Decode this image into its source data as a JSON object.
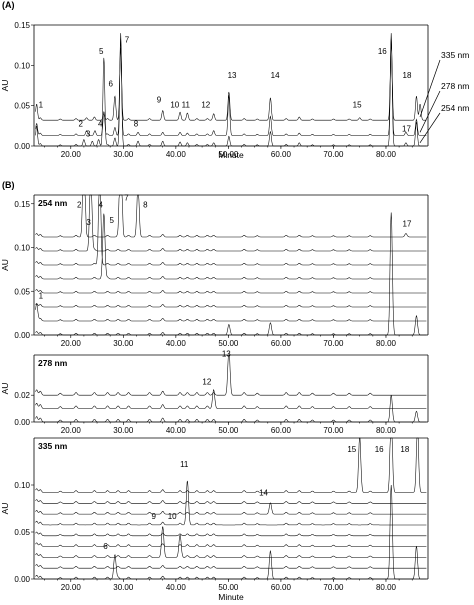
{
  "panel_a_label": "(A)",
  "panel_b_label": "(B)",
  "chart_data": [
    {
      "type": "line",
      "id": "A",
      "xlabel": "Minute",
      "ylabel": "AU",
      "xlim": [
        13,
        88
      ],
      "ylim": [
        0,
        0.15
      ],
      "xticks": [
        "20.00",
        "30.00",
        "40.00",
        "50.00",
        "60.00",
        "70.00",
        "80.00"
      ],
      "yticks": [
        "0.00",
        "0.05",
        "0.10",
        "0.15"
      ],
      "series": [
        {
          "name": "335 nm",
          "offset": 0.032,
          "peaks": [
            [
              13.5,
              0.02
            ],
            [
              23,
              0.003
            ],
            [
              24.5,
              0.004
            ],
            [
              26.3,
              0.008
            ],
            [
              28.4,
              0.03
            ],
            [
              29.5,
              0.09
            ],
            [
              37.5,
              0.012
            ],
            [
              40.8,
              0.01
            ],
            [
              42.2,
              0.009
            ],
            [
              47.2,
              0.008
            ],
            [
              50.1,
              0.035
            ],
            [
              58,
              0.028
            ],
            [
              63.5,
              0.004
            ],
            [
              75,
              0.003
            ],
            [
              81,
              0.095
            ],
            [
              85.8,
              0.03
            ],
            [
              86.5,
              0.02
            ]
          ]
        },
        {
          "name": "278 nm",
          "offset": 0.013,
          "peaks": [
            [
              13.5,
              0.015
            ],
            [
              23,
              0.006
            ],
            [
              24.6,
              0.006
            ],
            [
              26.3,
              0.03
            ],
            [
              28.4,
              0.01
            ],
            [
              29.5,
              0.12
            ],
            [
              32.8,
              0.004
            ],
            [
              37.5,
              0.004
            ],
            [
              40.8,
              0.004
            ],
            [
              42.2,
              0.003
            ],
            [
              47.2,
              0.006
            ],
            [
              50.1,
              0.05
            ],
            [
              58,
              0.024
            ],
            [
              63.5,
              0.003
            ],
            [
              81,
              0.12
            ],
            [
              83.8,
              0.004
            ],
            [
              85.8,
              0.02
            ]
          ]
        },
        {
          "name": "254 nm",
          "offset": 0.0,
          "peaks": [
            [
              13.5,
              0.025
            ],
            [
              22.5,
              0.008
            ],
            [
              24.1,
              0.006
            ],
            [
              25.3,
              0.008
            ],
            [
              26.3,
              0.11
            ],
            [
              28.4,
              0.01
            ],
            [
              29.5,
              0.14
            ],
            [
              32.8,
              0.006
            ],
            [
              37.5,
              0.006
            ],
            [
              40.8,
              0.005
            ],
            [
              42.2,
              0.004
            ],
            [
              47.2,
              0.004
            ],
            [
              50.1,
              0.012
            ],
            [
              58,
              0.018
            ],
            [
              63.5,
              0.004
            ],
            [
              81,
              0.14
            ],
            [
              83.8,
              0.004
            ],
            [
              85.8,
              0.03
            ]
          ]
        }
      ],
      "peak_labels": [
        {
          "text": "1",
          "x": 14.3,
          "y": 0.048
        },
        {
          "text": "2",
          "x": 21.9,
          "y": 0.024
        },
        {
          "text": "3",
          "x": 23.3,
          "y": 0.012
        },
        {
          "text": "4",
          "x": 25.6,
          "y": 0.024
        },
        {
          "text": "5",
          "x": 25.8,
          "y": 0.114
        },
        {
          "text": "6",
          "x": 27.6,
          "y": 0.074
        },
        {
          "text": "7",
          "x": 30.7,
          "y": 0.128
        },
        {
          "text": "8",
          "x": 32.4,
          "y": 0.024
        },
        {
          "text": "9",
          "x": 36.8,
          "y": 0.054
        },
        {
          "text": "10",
          "x": 39.8,
          "y": 0.048
        },
        {
          "text": "11",
          "x": 41.9,
          "y": 0.048
        },
        {
          "text": "12",
          "x": 45.7,
          "y": 0.048
        },
        {
          "text": "13",
          "x": 50.7,
          "y": 0.084
        },
        {
          "text": "14",
          "x": 58.9,
          "y": 0.084
        },
        {
          "text": "15",
          "x": 74.5,
          "y": 0.048
        },
        {
          "text": "16",
          "x": 79.3,
          "y": 0.114
        },
        {
          "text": "17",
          "x": 83.9,
          "y": 0.018
        },
        {
          "text": "18",
          "x": 84.0,
          "y": 0.084
        }
      ]
    },
    {
      "type": "line",
      "id": "B1",
      "subtitle": "254 nm",
      "xlabel": "",
      "ylabel": "AU",
      "xlim": [
        13,
        88
      ],
      "ylim": [
        0,
        0.16
      ],
      "xticks": [
        "20.00",
        "30.00",
        "40.00",
        "50.00",
        "60.00",
        "70.00",
        "80.00"
      ],
      "yticks": [
        "0.00",
        "0.05",
        "0.10",
        "0.15"
      ],
      "offsets": [
        0.0,
        0.016,
        0.032,
        0.048,
        0.064,
        0.08,
        0.096,
        0.112
      ],
      "highlight_peaks": [
        [
          13.5,
          0.016,
          1
        ],
        [
          22.5,
          0.11,
          7
        ],
        [
          23.8,
          0.1,
          6
        ],
        [
          25.5,
          0.11,
          5
        ],
        [
          26.3,
          0.075,
          4
        ],
        [
          29.5,
          0.14,
          7
        ],
        [
          32.8,
          0.06,
          7
        ],
        [
          83.8,
          0.004,
          7
        ],
        [
          81,
          0.14,
          0
        ],
        [
          50.1,
          0.012,
          0
        ],
        [
          58,
          0.014,
          0
        ],
        [
          85.8,
          0.022,
          0
        ]
      ],
      "peak_labels": [
        {
          "text": "2",
          "x": 21.6,
          "y": 0.146
        },
        {
          "text": "3",
          "x": 23.4,
          "y": 0.126
        },
        {
          "text": "4",
          "x": 25.7,
          "y": 0.146
        },
        {
          "text": "5",
          "x": 27.8,
          "y": 0.128
        },
        {
          "text": "7",
          "x": 30.6,
          "y": 0.154
        },
        {
          "text": "8",
          "x": 34.2,
          "y": 0.146
        },
        {
          "text": "17",
          "x": 84.0,
          "y": 0.124
        },
        {
          "text": "1",
          "x": 14.3,
          "y": 0.042
        }
      ]
    },
    {
      "type": "line",
      "id": "B2",
      "subtitle": "278 nm",
      "xlabel": "",
      "ylabel": "AU",
      "xlim": [
        13,
        88
      ],
      "ylim": [
        0,
        0.05
      ],
      "xticks": [
        "20.00",
        "30.00",
        "40.00",
        "50.00",
        "60.00",
        "70.00",
        "80.00"
      ],
      "yticks": [
        "0.00",
        "0.02"
      ],
      "offsets": [
        0.0,
        0.01,
        0.02
      ],
      "highlight_peaks": [
        [
          47.2,
          0.012,
          1
        ],
        [
          50.1,
          0.035,
          2
        ],
        [
          81,
          0.02,
          0
        ],
        [
          85.8,
          0.008,
          0
        ]
      ],
      "peak_labels": [
        {
          "text": "12",
          "x": 45.9,
          "y": 0.028
        },
        {
          "text": "13",
          "x": 49.6,
          "y": 0.049
        }
      ]
    },
    {
      "type": "line",
      "id": "B3",
      "subtitle": "335 nm",
      "xlabel": "Minute",
      "ylabel": "AU",
      "xlim": [
        13,
        88
      ],
      "ylim": [
        0,
        0.15
      ],
      "xticks": [
        "20.00",
        "30.00",
        "40.00",
        "50.00",
        "60.00",
        "70.00",
        "80.00"
      ],
      "yticks": [
        "0.00",
        "0.05",
        "0.10"
      ],
      "offsets": [
        0.0,
        0.0115,
        0.023,
        0.0345,
        0.046,
        0.0575,
        0.069,
        0.0805,
        0.092
      ],
      "highlight_peaks": [
        [
          28.4,
          0.026,
          0
        ],
        [
          37.5,
          0.03,
          2
        ],
        [
          40.8,
          0.022,
          2
        ],
        [
          42.2,
          0.045,
          5
        ],
        [
          58,
          0.012,
          6
        ],
        [
          58,
          0.03,
          0
        ],
        [
          75,
          0.06,
          8
        ],
        [
          81,
          0.09,
          8
        ],
        [
          86,
          0.07,
          8
        ],
        [
          81,
          0.1,
          0
        ],
        [
          85.8,
          0.035,
          0
        ]
      ],
      "peak_labels": [
        {
          "text": "6",
          "x": 26.6,
          "y": 0.032
        },
        {
          "text": "9",
          "x": 35.8,
          "y": 0.064
        },
        {
          "text": "10",
          "x": 39.3,
          "y": 0.064
        },
        {
          "text": "11",
          "x": 41.6,
          "y": 0.119
        },
        {
          "text": "14",
          "x": 56.7,
          "y": 0.089
        },
        {
          "text": "15",
          "x": 73.5,
          "y": 0.135
        },
        {
          "text": "16",
          "x": 78.7,
          "y": 0.135
        },
        {
          "text": "18",
          "x": 83.6,
          "y": 0.135
        }
      ]
    }
  ]
}
